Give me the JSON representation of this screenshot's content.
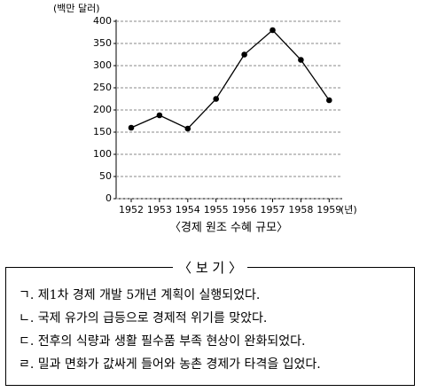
{
  "chart_data": {
    "type": "line",
    "y_label": "(백만 달러)",
    "x_label": "(년)",
    "title": "〈경제 원조 수혜 규모〉",
    "categories": [
      "1952",
      "1953",
      "1954",
      "1955",
      "1956",
      "1957",
      "1958",
      "1959"
    ],
    "values": [
      160,
      188,
      158,
      225,
      325,
      380,
      313,
      222
    ],
    "color": "#000000",
    "ylim": [
      0,
      400
    ],
    "yticks": [
      0,
      50,
      100,
      150,
      200,
      250,
      300,
      350,
      400
    ],
    "grid": true
  },
  "box": {
    "title": "〈 보 기 〉",
    "items": [
      "ㄱ. 제1차 경제 개발 5개년 계획이 실행되었다.",
      "ㄴ. 국제 유가의 급등으로 경제적 위기를 맞았다.",
      "ㄷ. 전후의 식량과 생활 필수품 부족 현상이 완화되었다.",
      "ㄹ. 밀과 면화가 값싸게 들어와 농촌 경제가 타격을 입었다."
    ]
  }
}
